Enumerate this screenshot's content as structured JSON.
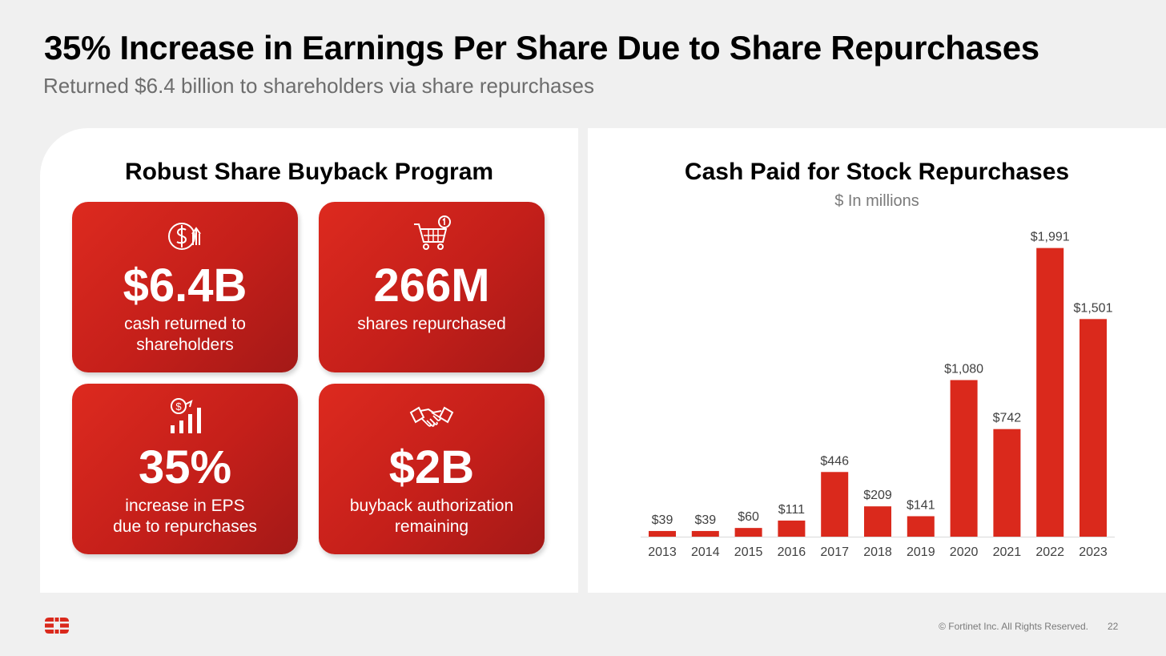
{
  "slide": {
    "title": "35% Increase in Earnings Per Share Due to Share Repurchases",
    "subtitle": "Returned $6.4 billion to shareholders via share repurchases",
    "copyright": "© Fortinet Inc. All Rights Reserved.",
    "page_number": "22",
    "logo_icon": "fortinet-logo-icon"
  },
  "left_panel": {
    "heading": "Robust Share Buyback Program",
    "cards": [
      {
        "value": "$6.4B",
        "desc_line1": "cash returned to",
        "desc_line2": "shareholders",
        "icon": "dollar-up-icon"
      },
      {
        "value": "266M",
        "desc_line1": "shares repurchased",
        "desc_line2": "",
        "icon": "shopping-cart-icon"
      },
      {
        "value": "35%",
        "desc_line1": "increase in EPS",
        "desc_line2": "due to repurchases",
        "icon": "growth-chart-icon"
      },
      {
        "value": "$2B",
        "desc_line1": "buyback authorization",
        "desc_line2": "remaining",
        "icon": "handshake-icon"
      }
    ],
    "card_color": "#d42a1f"
  },
  "chart_data": {
    "type": "bar",
    "title": "Cash Paid for Stock Repurchases",
    "subtitle": "$ In millions",
    "categories": [
      "2013",
      "2014",
      "2015",
      "2016",
      "2017",
      "2018",
      "2019",
      "2020",
      "2021",
      "2022",
      "2023"
    ],
    "values": [
      39,
      39,
      60,
      111,
      446,
      209,
      141,
      1080,
      742,
      1991,
      1501
    ],
    "data_labels": [
      "$39",
      "$39",
      "$60",
      "$111",
      "$446",
      "$209",
      "$141",
      "$1,080",
      "$742",
      "$1,991",
      "$1,501"
    ],
    "xlabel": "",
    "ylabel": "",
    "ylim": [
      0,
      2000
    ],
    "grid": false,
    "bar_color": "#da291c"
  }
}
